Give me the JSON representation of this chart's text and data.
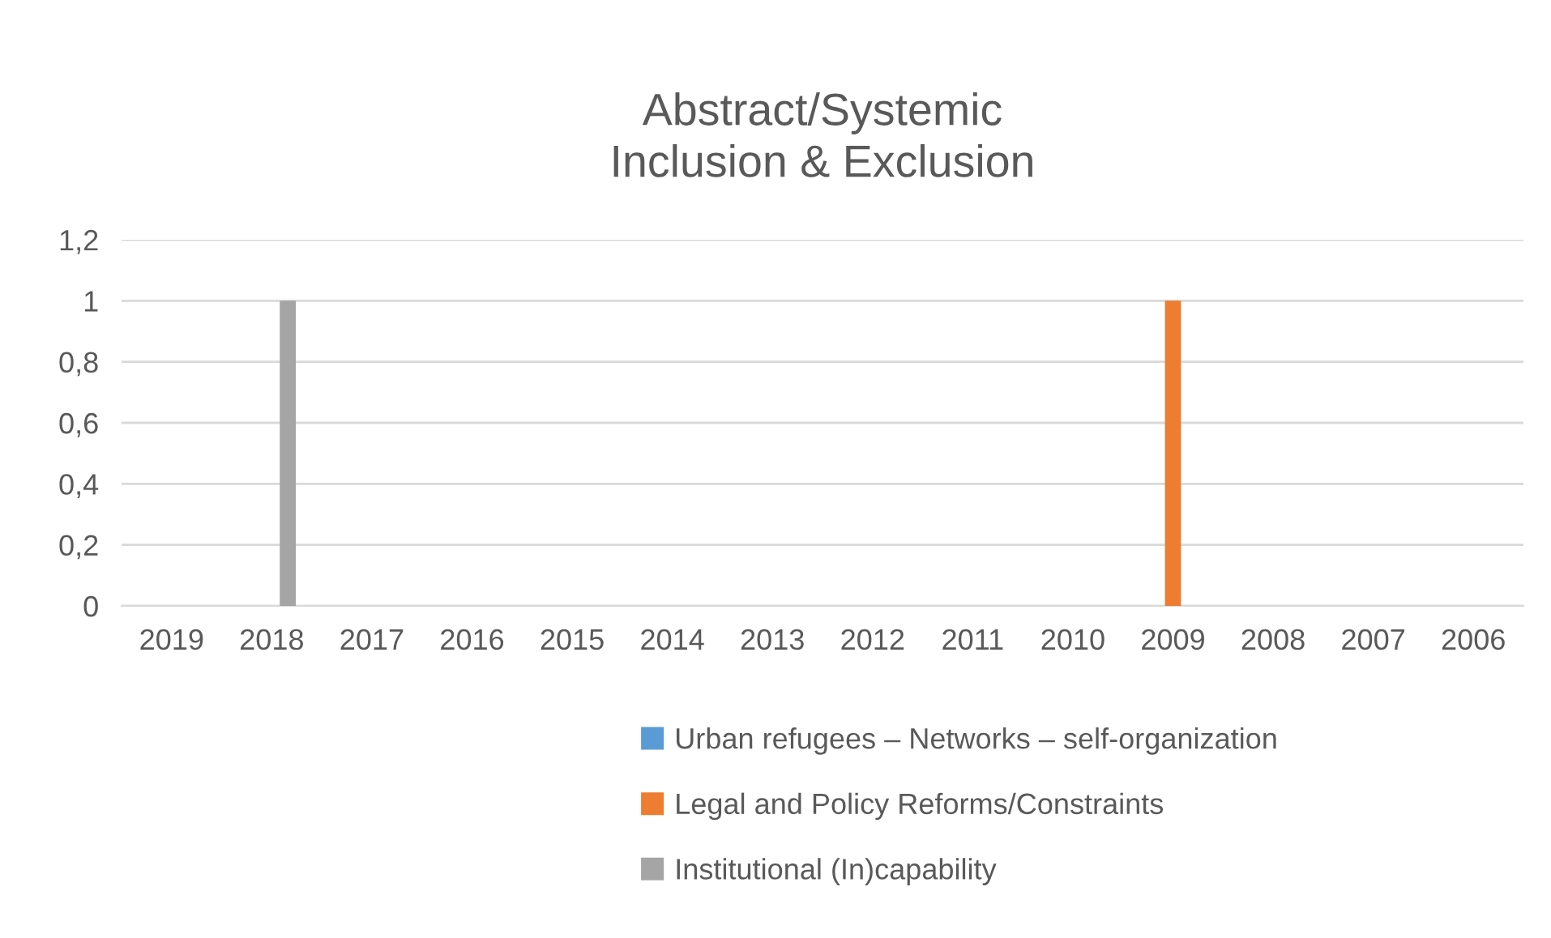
{
  "chart_data": {
    "type": "bar",
    "title": "Abstract/Systemic\nInclusion & Exclusion",
    "categories": [
      "2019",
      "2018",
      "2017",
      "2016",
      "2015",
      "2014",
      "2013",
      "2012",
      "2011",
      "2010",
      "2009",
      "2008",
      "2007",
      "2006"
    ],
    "series": [
      {
        "name": "Urban refugees – Networks – self-organization",
        "color": "#5b9bd5",
        "values": [
          0,
          0,
          0,
          0,
          0,
          0,
          0,
          0,
          0,
          0,
          0,
          0,
          0,
          0
        ]
      },
      {
        "name": "Legal and Policy Reforms/Constraints",
        "color": "#ed7d31",
        "values": [
          0,
          0,
          0,
          0,
          0,
          0,
          0,
          0,
          0,
          0,
          1,
          0,
          0,
          0
        ]
      },
      {
        "name": "Institutional (In)capability",
        "color": "#a5a5a5",
        "values": [
          0,
          1,
          0,
          0,
          0,
          0,
          0,
          0,
          0,
          0,
          0,
          0,
          0,
          0
        ]
      }
    ],
    "ylim": [
      0,
      1.2
    ],
    "yticks": [
      0,
      {
        "value": 0.2,
        "label": "0,2"
      },
      {
        "value": 0.4,
        "label": "0,4"
      },
      {
        "value": 0.6,
        "label": "0,6"
      },
      {
        "value": 0.8,
        "label": "0,8"
      },
      1,
      {
        "value": 1.2,
        "label": "1,2"
      }
    ],
    "grid": "y",
    "legend": "bottom"
  }
}
